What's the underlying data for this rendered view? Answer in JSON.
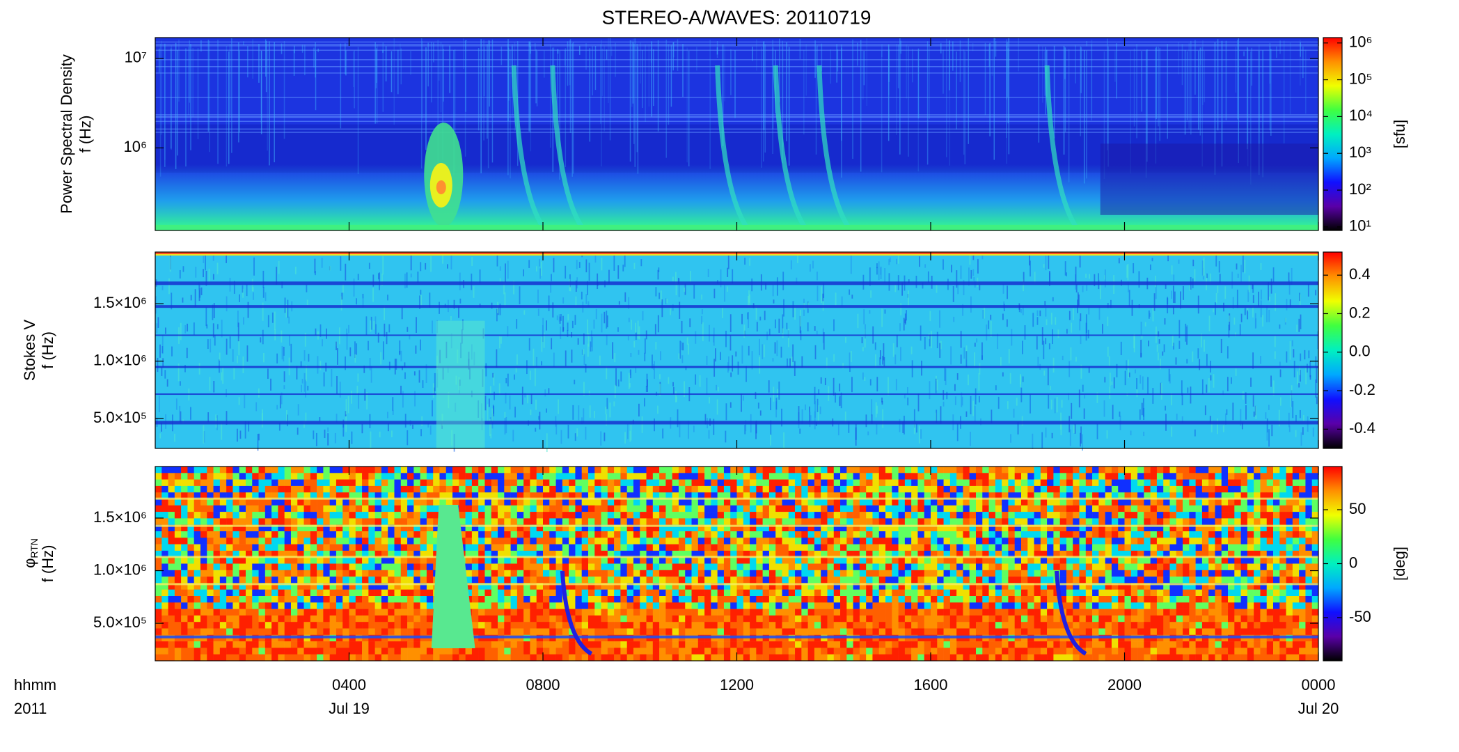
{
  "chart_data": [
    {
      "type": "heatmap",
      "title": "STEREO-A/WAVES: 20110719",
      "ylabel": "Power Spectral Density",
      "ylabel2": "f (Hz)",
      "ylog": true,
      "ylim": [
        120000,
        17000000
      ],
      "yticks": [
        {
          "value": 1000000,
          "label": "10⁶"
        },
        {
          "value": 10000000,
          "label": "10⁷"
        }
      ],
      "xlim": [
        0,
        24
      ],
      "colorbar": {
        "log": true,
        "clim": [
          8,
          1400000
        ],
        "label": "[sfu]",
        "ticks": [
          {
            "value": 10,
            "label": "10¹"
          },
          {
            "value": 100,
            "label": "10²"
          },
          {
            "value": 1000,
            "label": "10³"
          },
          {
            "value": 10000,
            "label": "10⁴"
          },
          {
            "value": 100000,
            "label": "10⁵"
          },
          {
            "value": 1000000,
            "label": "10⁶"
          }
        ]
      },
      "colormap": [
        "#000000",
        "#5a00a8",
        "#1010ff",
        "#00a8ff",
        "#00f0c0",
        "#40ff40",
        "#f0ff00",
        "#ff9000",
        "#ff0000"
      ]
    },
    {
      "type": "heatmap",
      "ylabel": "Stokes V",
      "ylabel2": "f (Hz)",
      "ylim": [
        240000,
        1950000
      ],
      "yticks": [
        {
          "value": 500000,
          "label": "5.0×10⁵"
        },
        {
          "value": 1000000,
          "label": "1.0×10⁶"
        },
        {
          "value": 1500000,
          "label": "1.5×10⁶"
        }
      ],
      "xlim": [
        0,
        24
      ],
      "colorbar": {
        "clim": [
          -0.5,
          0.52
        ],
        "ticks": [
          -0.4,
          -0.2,
          {
            "value": 0,
            "label": "0.0"
          },
          0.2,
          0.4
        ]
      },
      "colormap": [
        "#000000",
        "#5a00a8",
        "#1010ff",
        "#00a8ff",
        "#00f0c0",
        "#40ff40",
        "#f0ff00",
        "#ff9000",
        "#ff0000"
      ]
    },
    {
      "type": "heatmap",
      "ylabel": "φ",
      "ylabel_sub": "RTN",
      "ylabel2": "f (Hz)",
      "ylim": [
        143000,
        1990000
      ],
      "yticks": [
        {
          "value": 500000,
          "label": "5.0×10⁵"
        },
        {
          "value": 1000000,
          "label": "1.0×10⁶"
        },
        {
          "value": 1500000,
          "label": "1.5×10⁶"
        }
      ],
      "xlim": [
        0,
        24
      ],
      "xticks": [
        {
          "value": 4,
          "label": "0400"
        },
        {
          "value": 8,
          "label": "0800"
        },
        {
          "value": 12,
          "label": "1200"
        },
        {
          "value": 16,
          "label": "1600"
        },
        {
          "value": 20,
          "label": "2000"
        },
        {
          "value": 24,
          "label": "0000"
        }
      ],
      "xdates": [
        {
          "value": 4,
          "label": "Jul 19"
        },
        {
          "value": 24,
          "label": "Jul 20"
        }
      ],
      "xunit": "hhmm",
      "xyear": "2011",
      "colorbar": {
        "clim": [
          -90,
          90
        ],
        "label": "[deg]",
        "ticks": [
          -50,
          0,
          50
        ]
      },
      "colormap": [
        "#000000",
        "#5a00a8",
        "#1010ff",
        "#00a8ff",
        "#00f0c0",
        "#40ff40",
        "#f0ff00",
        "#ff9000",
        "#ff0000"
      ]
    }
  ]
}
